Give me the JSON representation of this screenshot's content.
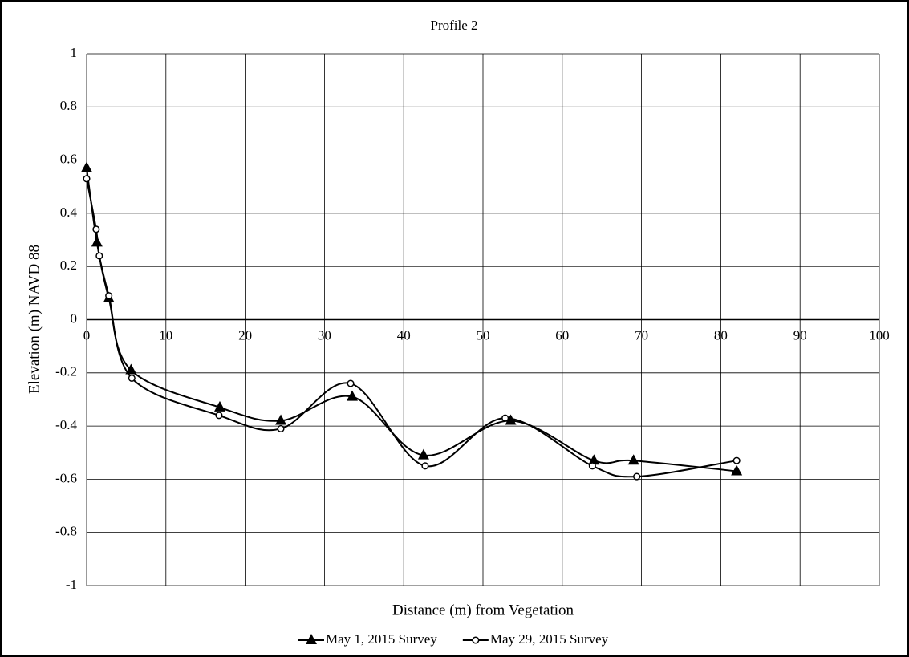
{
  "chart_data": {
    "type": "line",
    "title": "Profile 2",
    "x_label": "Distance (m) from Vegetation",
    "y_label": "Elevation (m) NAVD 88",
    "xlim": [
      0,
      100
    ],
    "xticks": [
      0,
      10,
      20,
      30,
      40,
      50,
      60,
      70,
      80,
      90,
      100
    ],
    "ylim": [
      -1,
      1
    ],
    "yticks": [
      -1,
      -0.8,
      -0.6,
      -0.4,
      -0.2,
      0,
      0.2,
      0.4,
      0.6,
      0.8,
      1
    ],
    "grid": true,
    "smooth": true,
    "legend": "bottom",
    "series": [
      {
        "name": "May 1, 2015 Survey",
        "color": "#000000",
        "marker": "triangle",
        "x": [
          0,
          1.3,
          2.8,
          5.6,
          16.8,
          24.5,
          33.5,
          42.5,
          53.5,
          64,
          69,
          82
        ],
        "values": [
          0.57,
          0.29,
          0.08,
          -0.19,
          -0.33,
          -0.38,
          -0.29,
          -0.51,
          -0.38,
          -0.53,
          -0.53,
          -0.57
        ]
      },
      {
        "name": "May 29, 2015 Survey",
        "color": "#000000",
        "marker": "circle",
        "x": [
          0,
          1.2,
          1.6,
          2.8,
          5.7,
          16.7,
          24.5,
          33.3,
          42.7,
          52.8,
          63.8,
          69.4,
          82
        ],
        "values": [
          0.53,
          0.34,
          0.24,
          0.09,
          -0.22,
          -0.36,
          -0.41,
          -0.24,
          -0.55,
          -0.37,
          -0.55,
          -0.59,
          -0.53
        ]
      }
    ]
  }
}
